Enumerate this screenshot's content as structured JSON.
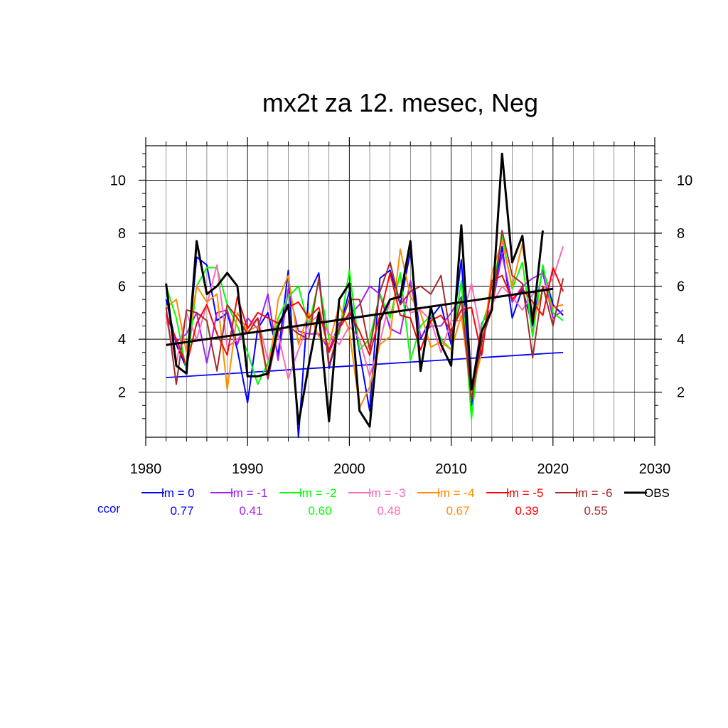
{
  "chart_data": {
    "type": "line",
    "title": "mx2t za 12. mesec, Neg",
    "xlabel": "",
    "ylabel": "",
    "xlim": [
      1980,
      2030
    ],
    "ylim": [
      0.3,
      11.3
    ],
    "x_ticks": [
      1980,
      1990,
      2000,
      2010,
      2020,
      2030
    ],
    "y_ticks": [
      2,
      4,
      6,
      8,
      10
    ],
    "grid": true,
    "x": [
      1982,
      1983,
      1984,
      1985,
      1986,
      1987,
      1988,
      1989,
      1990,
      1991,
      1992,
      1993,
      1994,
      1995,
      1996,
      1997,
      1998,
      1999,
      2000,
      2001,
      2002,
      2003,
      2004,
      2005,
      2006,
      2007,
      2008,
      2009,
      2010,
      2011,
      2012,
      2013,
      2014,
      2015,
      2016,
      2017,
      2018,
      2019,
      2020,
      2021
    ],
    "series": [
      {
        "name": "lm = 0",
        "color": "#0000ff",
        "ccor": "0.77",
        "values": [
          5.5,
          3.8,
          2.9,
          7.1,
          6.8,
          4.7,
          5.0,
          3.6,
          1.6,
          4.4,
          5.0,
          3.4,
          6.6,
          0.3,
          5.7,
          6.5,
          2.9,
          4.4,
          5.8,
          3.5,
          1.3,
          6.3,
          6.6,
          5.3,
          7.3,
          4.0,
          4.8,
          5.3,
          3.8,
          7.0,
          1.5,
          3.9,
          5.2,
          7.5,
          4.8,
          5.9,
          4.5,
          6.7,
          5.3,
          4.9
        ],
        "trend": [
          2.55,
          3.5
        ]
      },
      {
        "name": "lm = -1",
        "color": "#a020f0",
        "ccor": "0.41",
        "values": [
          5.0,
          3.9,
          4.2,
          5.0,
          3.1,
          5.0,
          5.1,
          3.8,
          4.8,
          4.4,
          5.7,
          3.2,
          5.9,
          4.3,
          4.2,
          4.2,
          3.6,
          4.6,
          4.9,
          5.3,
          6.0,
          5.7,
          4.4,
          4.2,
          6.2,
          4.1,
          4.5,
          4.5,
          5.0,
          5.6,
          2.1,
          4.6,
          5.2,
          7.2,
          5.4,
          6.0,
          6.3,
          6.5,
          4.8,
          5.1
        ],
        "trend": null
      },
      {
        "name": "lm = -2",
        "color": "#00ff00",
        "ccor": "0.60",
        "values": [
          6.0,
          4.8,
          2.8,
          6.0,
          6.7,
          6.7,
          5.3,
          4.5,
          3.5,
          2.3,
          3.1,
          4.8,
          5.6,
          6.0,
          4.5,
          6.2,
          4.0,
          4.2,
          6.6,
          3.6,
          4.0,
          5.7,
          4.8,
          6.5,
          3.2,
          4.5,
          4.9,
          4.0,
          3.6,
          6.2,
          1.0,
          4.5,
          5.7,
          7.9,
          5.9,
          6.9,
          4.1,
          6.8,
          5.0,
          4.7
        ],
        "trend": null
      },
      {
        "name": "lm = -3",
        "color": "#ff69b4",
        "ccor": "0.48",
        "values": [
          4.8,
          3.1,
          5.0,
          4.0,
          5.3,
          6.8,
          3.7,
          4.0,
          4.4,
          4.8,
          3.2,
          4.2,
          2.5,
          3.6,
          4.6,
          4.9,
          4.2,
          3.8,
          4.5,
          4.0,
          2.6,
          3.9,
          5.5,
          5.7,
          5.0,
          5.1,
          4.7,
          3.5,
          4.7,
          4.7,
          6.1,
          4.0,
          5.3,
          6.0,
          5.6,
          5.1,
          5.7,
          5.9,
          6.3,
          7.5
        ],
        "trend": null
      },
      {
        "name": "lm = -4",
        "color": "#ff8c00",
        "ccor": "0.67",
        "values": [
          5.2,
          5.5,
          3.5,
          6.0,
          5.4,
          5.7,
          2.1,
          5.0,
          4.3,
          4.5,
          2.5,
          5.5,
          6.4,
          3.8,
          5.0,
          4.1,
          3.8,
          5.3,
          4.3,
          1.4,
          2.2,
          3.8,
          4.1,
          7.4,
          5.6,
          5.0,
          3.7,
          3.9,
          3.6,
          4.9,
          1.9,
          3.5,
          6.5,
          7.7,
          6.0,
          7.6,
          4.6,
          5.9,
          5.2,
          5.3
        ],
        "trend": null
      },
      {
        "name": "lm = -5",
        "color": "#ff0000",
        "ccor": "0.39",
        "values": [
          4.9,
          4.0,
          3.0,
          4.6,
          5.3,
          4.2,
          3.4,
          5.6,
          4.4,
          5.0,
          4.8,
          4.6,
          5.2,
          5.4,
          4.8,
          5.2,
          3.5,
          4.4,
          5.0,
          4.3,
          3.4,
          4.9,
          6.5,
          4.9,
          4.8,
          3.6,
          4.7,
          4.9,
          4.3,
          5.1,
          5.2,
          3.4,
          6.2,
          6.4,
          5.5,
          5.9,
          5.4,
          4.9,
          6.7,
          5.8
        ],
        "trend": null
      },
      {
        "name": "lm = -6",
        "color": "#a52a2a",
        "ccor": "0.55",
        "values": [
          5.2,
          2.3,
          5.1,
          5.0,
          4.7,
          2.8,
          5.3,
          4.8,
          4.2,
          4.8,
          2.5,
          4.3,
          4.5,
          4.2,
          4.0,
          6.3,
          3.0,
          4.4,
          5.5,
          5.5,
          3.6,
          5.8,
          6.9,
          5.3,
          5.8,
          6.0,
          5.7,
          6.4,
          4.0,
          5.5,
          1.7,
          4.0,
          5.1,
          8.1,
          6.4,
          6.1,
          3.3,
          6.0,
          4.5,
          6.3
        ],
        "trend": null
      },
      {
        "name": "OBS",
        "color": "#000000",
        "ccor": "",
        "values": [
          6.1,
          3.0,
          2.7,
          7.7,
          5.7,
          6.0,
          6.5,
          6.0,
          2.6,
          2.6,
          2.7,
          4.5,
          5.3,
          0.8,
          3.0,
          5.0,
          0.9,
          5.5,
          6.1,
          1.3,
          0.7,
          4.7,
          5.5,
          5.6,
          7.7,
          2.8,
          5.2,
          3.8,
          3.0,
          8.3,
          2.1,
          4.3,
          5.1,
          11.0,
          6.9,
          7.9,
          4.6,
          8.1,
          null,
          null
        ],
        "trend": [
          3.78,
          5.9
        ]
      }
    ],
    "trend_x": [
      1982,
      2021
    ],
    "obs_trend_x": [
      1982,
      2020
    ],
    "legend": {
      "ccor_label": "ccor",
      "placement": "bottom",
      "items": [
        {
          "label": "lm = 0",
          "color": "#0000ff",
          "ccor": "0.77"
        },
        {
          "label": "lm = -1",
          "color": "#a020f0",
          "ccor": "0.41"
        },
        {
          "label": "lm = -2",
          "color": "#00ff00",
          "ccor": "0.60"
        },
        {
          "label": "lm = -3",
          "color": "#ff69b4",
          "ccor": "0.48"
        },
        {
          "label": "lm = -4",
          "color": "#ff8c00",
          "ccor": "0.67"
        },
        {
          "label": "lm = -5",
          "color": "#ff0000",
          "ccor": "0.39"
        },
        {
          "label": "lm = -6",
          "color": "#a52a2a",
          "ccor": "0.55"
        },
        {
          "label": "OBS",
          "color": "#000000",
          "ccor": ""
        }
      ]
    }
  }
}
